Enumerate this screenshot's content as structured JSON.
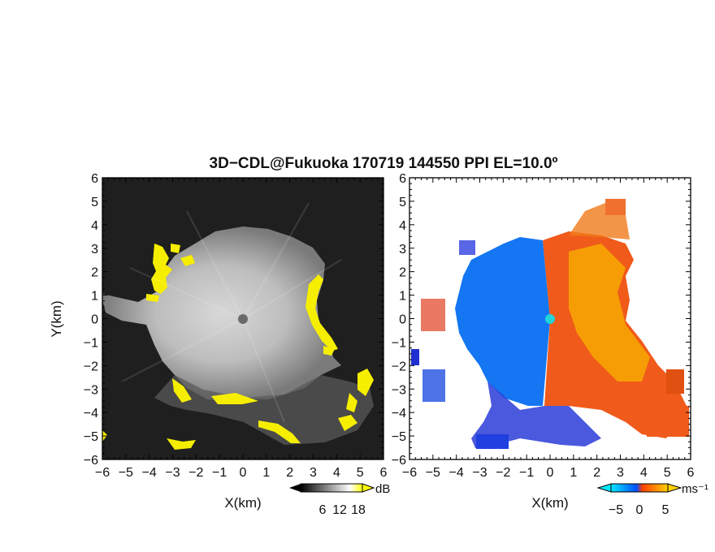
{
  "title": "3D−CDL@Fukuoka 170719 144550 PPI EL=10.0º",
  "chart_data": [
    {
      "type": "heatmap",
      "name": "backscatter",
      "xlabel": "X(km)",
      "ylabel": "Y(km)",
      "xlim": [
        -6,
        6
      ],
      "ylim": [
        -6,
        6
      ],
      "xticks": [
        "−6",
        "−5",
        "−4",
        "−3",
        "−2",
        "−1",
        "0",
        "1",
        "2",
        "3",
        "4",
        "5",
        "6"
      ],
      "yticks": [
        "6",
        "5",
        "4",
        "3",
        "2",
        "1",
        "0",
        "−1",
        "−2",
        "−3",
        "−4",
        "−5",
        "−6"
      ],
      "colorbar": {
        "unit": "dB",
        "ticks": [
          "6",
          "12",
          "18"
        ],
        "colors": [
          "#000000",
          "#ffffff",
          "#ffff00"
        ]
      }
    },
    {
      "type": "heatmap",
      "name": "radial-velocity",
      "xlabel": "X(km)",
      "xlim": [
        -6,
        6
      ],
      "ylim": [
        -6,
        6
      ],
      "xticks": [
        "−6",
        "−5",
        "−4",
        "−3",
        "−2",
        "−1",
        "0",
        "1",
        "2",
        "3",
        "4",
        "5",
        "6"
      ],
      "yticks": [
        "6",
        "5",
        "4",
        "3",
        "2",
        "1",
        "0",
        "−1",
        "−2",
        "−3",
        "−4",
        "−5",
        "−6"
      ],
      "colorbar": {
        "unit": "ms⁻¹",
        "ticks": [
          "−5",
          "0",
          "5"
        ],
        "colors": [
          "#00e8ff",
          "#0050ff",
          "#ff4000",
          "#ffd000"
        ]
      }
    }
  ]
}
